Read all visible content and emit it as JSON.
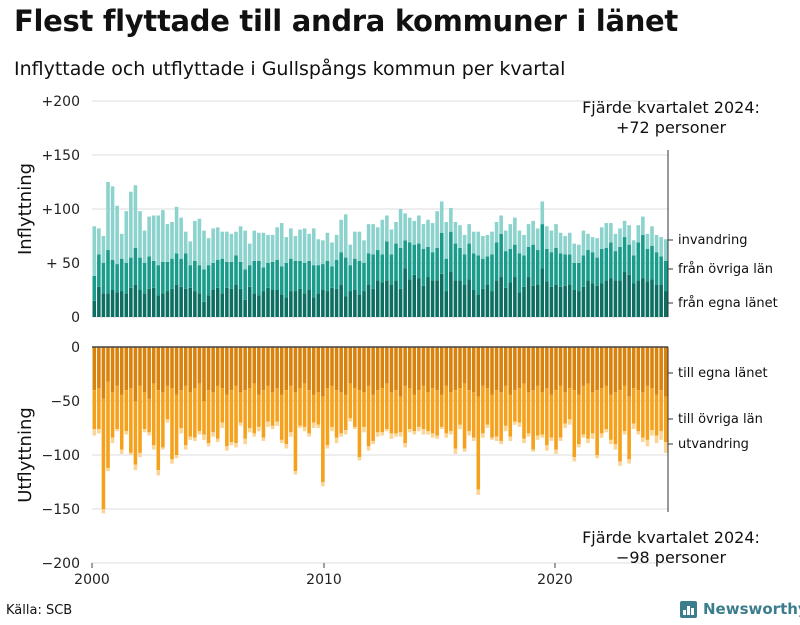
{
  "title": "Flest flyttade till andra kommuner i länet",
  "subtitle": "Inflyttade och utflyttade i Gullspångs kommun per kvartal",
  "source": "Källa: SCB",
  "brand": "Newsworthy",
  "brand_icon": "bar-chart-logo-icon",
  "colors": {
    "in_egna": "#0c6f61",
    "in_ovriga": "#1a9c8c",
    "in_invandring": "#8bd3cc",
    "out_egna": "#d9820c",
    "out_ovriga": "#f5a11c",
    "out_utvandring": "#fad596",
    "grid": "#dcdcdc",
    "axis_zero": "#444444"
  },
  "chart_data": {
    "type": "bar",
    "stacked": true,
    "x_axis": {
      "ticks": [
        "2000",
        "2010",
        "2020"
      ],
      "range": [
        "2000 Q1",
        "2024 Q4"
      ]
    },
    "panels": [
      {
        "name": "inflyttning",
        "ylabel": "Inflyttning",
        "ylim": [
          0,
          200
        ],
        "yticks": [
          0,
          50,
          100,
          150,
          200
        ],
        "ytick_labels": [
          "0",
          "+ 50",
          "+100",
          "+150",
          "+200"
        ],
        "annotation": [
          "Fjärde kvartalet 2024:",
          "+72 personer"
        ],
        "series": [
          {
            "name": "från egna länet",
            "values": [
              15,
              28,
              22,
              22,
              25,
              23,
              24,
              22,
              27,
              30,
              25,
              22,
              26,
              27,
              20,
              22,
              24,
              26,
              30,
              28,
              26,
              27,
              24,
              22,
              14,
              20,
              25,
              27,
              22,
              27,
              26,
              30,
              26,
              16,
              28,
              22,
              20,
              24,
              27,
              25,
              25,
              21,
              18,
              24,
              24,
              26,
              22,
              25,
              18,
              22,
              25,
              24,
              27,
              26,
              30,
              19,
              24,
              25,
              21,
              24,
              30,
              26,
              34,
              32,
              34,
              30,
              34,
              26,
              45,
              35,
              39,
              36,
              29,
              37,
              34,
              34,
              40,
              24,
              42,
              34,
              34,
              30,
              35,
              25,
              21,
              26,
              30,
              24,
              34,
              37,
              27,
              32,
              37,
              23,
              28,
              37,
              29,
              30,
              45,
              33,
              28,
              30,
              28,
              29,
              30,
              25,
              24,
              28,
              34,
              31,
              29,
              31,
              34,
              36,
              34,
              34,
              42,
              39,
              31,
              34,
              36,
              33,
              35,
              30,
              30,
              24
            ]
          },
          {
            "name": "från övriga län",
            "values": [
              23,
              30,
              28,
              40,
              28,
              26,
              30,
              28,
              28,
              34,
              30,
              28,
              30,
              25,
              28,
              29,
              27,
              28,
              29,
              26,
              33,
              21,
              28,
              26,
              30,
              28,
              25,
              26,
              32,
              24,
              25,
              27,
              25,
              28,
              20,
              30,
              32,
              22,
              23,
              26,
              28,
              26,
              32,
              30,
              28,
              26,
              28,
              27,
              30,
              26,
              24,
              28,
              20,
              27,
              30,
              36,
              24,
              29,
              31,
              26,
              29,
              32,
              28,
              26,
              36,
              28,
              34,
              38,
              26,
              34,
              28,
              32,
              34,
              28,
              26,
              30,
              38,
              30,
              37,
              34,
              30,
              28,
              33,
              34,
              36,
              28,
              26,
              34,
              35,
              40,
              34,
              31,
              30,
              36,
              29,
              28,
              38,
              32,
              41,
              30,
              32,
              34,
              31,
              29,
              28,
              25,
              26,
              29,
              28,
              29,
              26,
              32,
              30,
              33,
              27,
              31,
              32,
              28,
              26,
              35,
              40,
              30,
              31,
              30,
              26,
              28
            ]
          },
          {
            "name": "invandring",
            "values": [
              46,
              24,
              25,
              63,
              68,
              54,
              23,
              48,
              61,
              58,
              43,
              30,
              37,
              42,
              46,
              48,
              35,
              34,
              43,
              38,
              20,
              22,
              37,
              43,
              36,
              25,
              32,
              30,
              25,
              28,
              26,
              22,
              33,
              36,
              20,
              28,
              26,
              32,
              26,
              25,
              30,
              40,
              24,
              28,
              23,
              29,
              32,
              25,
              34,
              24,
              22,
              26,
              22,
              23,
              30,
              40,
              19,
              25,
              27,
              21,
              27,
              28,
              21,
              32,
              24,
              23,
              20,
              36,
              25,
              23,
              22,
              26,
              23,
              25,
              27,
              34,
              29,
              34,
              22,
              20,
              21,
              18,
              18,
              20,
              22,
              21,
              20,
              21,
              19,
              17,
              19,
              23,
              25,
              21,
              19,
              21,
              22,
              20,
              21,
              21,
              20,
              22,
              19,
              17,
              20,
              18,
              17,
              23,
              15,
              14,
              18,
              20,
              23,
              18,
              16,
              17,
              15,
              18,
              14,
              16,
              17,
              14,
              18,
              16,
              18,
              20
            ]
          }
        ]
      },
      {
        "name": "utflyttning",
        "ylabel": "Utflyttning",
        "ylim": [
          -200,
          0
        ],
        "yticks": [
          0,
          -50,
          -100,
          -150,
          -200
        ],
        "ytick_labels": [
          "0",
          "−50",
          "−100",
          "−150",
          "−200"
        ],
        "annotation": [
          "Fjärde kvartalet 2024:",
          "−98 personer"
        ],
        "series": [
          {
            "name": "till egna länet",
            "values": [
              -40,
              -38,
              -48,
              -32,
              -42,
              -36,
              -44,
              -40,
              -38,
              -50,
              -36,
              -42,
              -48,
              -34,
              -40,
              -42,
              -36,
              -38,
              -44,
              -40,
              -36,
              -42,
              -38,
              -34,
              -50,
              -40,
              -42,
              -36,
              -38,
              -44,
              -40,
              -36,
              -42,
              -40,
              -38,
              -34,
              -44,
              -40,
              -36,
              -42,
              -38,
              -44,
              -40,
              -36,
              -42,
              -38,
              -34,
              -40,
              -44,
              -42,
              -46,
              -38,
              -36,
              -40,
              -42,
              -44,
              -34,
              -38,
              -40,
              -42,
              -36,
              -44,
              -40,
              -38,
              -34,
              -42,
              -40,
              -46,
              -36,
              -38,
              -44,
              -40,
              -36,
              -42,
              -38,
              -40,
              -44,
              -36,
              -42,
              -40,
              -38,
              -34,
              -40,
              -42,
              -46,
              -36,
              -38,
              -44,
              -40,
              -42,
              -36,
              -44,
              -40,
              -38,
              -34,
              -42,
              -40,
              -36,
              -42,
              -38,
              -44,
              -40,
              -36,
              -42,
              -38,
              -40,
              -44,
              -36,
              -34,
              -42,
              -40,
              -38,
              -36,
              -44,
              -42,
              -40,
              -36,
              -46,
              -38,
              -40,
              -42,
              -36,
              -38,
              -44,
              -40,
              -46
            ]
          },
          {
            "name": "till övriga län",
            "values": [
              -36,
              -38,
              -102,
              -80,
              -42,
              -40,
              -51,
              -38,
              -60,
              -59,
              -62,
              -34,
              -31,
              -57,
              -74,
              -51,
              -31,
              -66,
              -56,
              -35,
              -55,
              -41,
              -46,
              -44,
              -31,
              -49,
              -37,
              -49,
              -32,
              -48,
              -48,
              -53,
              -28,
              -45,
              -37,
              -46,
              -30,
              -44,
              -33,
              -31,
              -31,
              -42,
              -50,
              -43,
              -73,
              -35,
              -40,
              -40,
              -26,
              -30,
              -79,
              -53,
              -38,
              -44,
              -38,
              -33,
              -32,
              -36,
              -62,
              -32,
              -56,
              -43,
              -39,
              -41,
              -42,
              -38,
              -40,
              -33,
              -53,
              -38,
              -34,
              -34,
              -40,
              -36,
              -42,
              -42,
              -30,
              -44,
              -36,
              -54,
              -34,
              -60,
              -38,
              -42,
              -86,
              -44,
              -34,
              -40,
              -43,
              -45,
              -37,
              -39,
              -29,
              -32,
              -51,
              -38,
              -55,
              -46,
              -39,
              -53,
              -40,
              -55,
              -48,
              -29,
              -29,
              -62,
              -46,
              -45,
              -51,
              -38,
              -60,
              -42,
              -40,
              -42,
              -48,
              -66,
              -42,
              -58,
              -33,
              -38,
              -42,
              -50,
              -39,
              -38,
              -38,
              -42
            ]
          },
          {
            "name": "utvandring",
            "values": [
              -6,
              -4,
              -4,
              -3,
              -5,
              -2,
              -4,
              -3,
              -2,
              -5,
              -4,
              -3,
              -3,
              -4,
              -5,
              -2,
              -3,
              -4,
              -3,
              -5,
              -4,
              -3,
              -3,
              -3,
              -5,
              -3,
              -4,
              -3,
              -5,
              -4,
              -3,
              -4,
              -3,
              -5,
              -4,
              -3,
              -4,
              -3,
              -5,
              -3,
              -4,
              -3,
              -4,
              -4,
              -3,
              -2,
              -4,
              -3,
              -5,
              -3,
              -4,
              -3,
              -4,
              -5,
              -3,
              -4,
              -3,
              -2,
              -3,
              -5,
              -4,
              -3,
              -4,
              -3,
              -2,
              -5,
              -3,
              -4,
              -4,
              -3,
              -3,
              -4,
              -5,
              -3,
              -4,
              -3,
              -2,
              -4,
              -3,
              -5,
              -4,
              -3,
              -4,
              -3,
              -5,
              -4,
              -3,
              -2,
              -4,
              -3,
              -5,
              -4,
              -3,
              -4,
              -4,
              -3,
              -2,
              -4,
              -3,
              -5,
              -3,
              -4,
              -3,
              -4,
              -5,
              -4,
              -3,
              -3,
              -4,
              -5,
              -3,
              -4,
              -3,
              -4,
              -5,
              -4,
              -3,
              -4,
              -5,
              -3,
              -4,
              -6,
              -5,
              -7,
              -8,
              -10
            ]
          }
        ]
      }
    ]
  }
}
